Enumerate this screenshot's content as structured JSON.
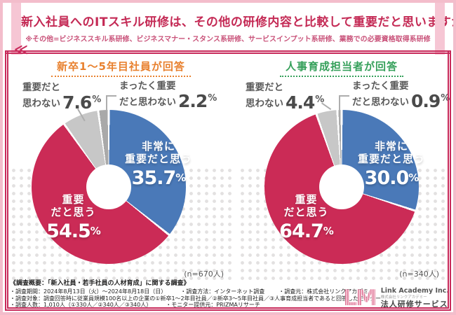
{
  "header": {
    "title": "新入社員へのITスキル研修は、その他の研修内容と比較して重要だと思いますか？",
    "note": "※その他=ビジネススキル系研修、ビジネスマナー・スタンス系研修、サービスインプット系研修、業務での必要資格取得系研修"
  },
  "colors": {
    "accent_crimson": "#c8295a",
    "frame_pink": "#f3bdcb",
    "blue": "#4a79b8",
    "red": "#cb2b56",
    "gray_light": "#c7c7c7",
    "gray_dark": "#a9a9a9",
    "orange": "#e8812f",
    "green": "#35a05a"
  },
  "chart_data": [
    {
      "type": "pie",
      "title": "新卒1～5年目社員が回答",
      "title_color": "#e8812f",
      "sample": "(n=670人)",
      "categories": [
        "非常に重要だと思う",
        "重要だと思う",
        "重要だと思わない",
        "まったく重要だと思わない"
      ],
      "values": [
        35.7,
        54.5,
        7.6,
        2.2
      ],
      "colors": [
        "#4a79b8",
        "#cb2b56",
        "#c7c7c7",
        "#a9a9a9"
      ],
      "display": {
        "very": {
          "line1": "非常に",
          "line2": "重要だと思う",
          "pct": "35.7",
          "unit": "%"
        },
        "imp": {
          "line1": "重要",
          "line2": "だと思う",
          "pct": "54.5",
          "unit": "%"
        },
        "not": {
          "line1": "重要だと",
          "line2": "思わない",
          "pct": "7.6",
          "unit": "%"
        },
        "notall": {
          "line1": "まったく重要",
          "line2": "だと思わない",
          "pct": "2.2",
          "unit": "%"
        }
      }
    },
    {
      "type": "pie",
      "title": "人事育成担当者が回答",
      "title_color": "#35a05a",
      "sample": "(n=340人)",
      "categories": [
        "非常に重要だと思う",
        "重要だと思う",
        "重要だと思わない",
        "まったく重要だと思わない"
      ],
      "values": [
        30.0,
        64.7,
        4.4,
        0.9
      ],
      "colors": [
        "#4a79b8",
        "#cb2b56",
        "#c7c7c7",
        "#a9a9a9"
      ],
      "display": {
        "very": {
          "line1": "非常に",
          "line2": "重要だと思う",
          "pct": "30.0",
          "unit": "%"
        },
        "imp": {
          "line1": "重要",
          "line2": "だと思う",
          "pct": "64.7",
          "unit": "%"
        },
        "not": {
          "line1": "重要だと",
          "line2": "思わない",
          "pct": "4.4",
          "unit": "%"
        },
        "notall": {
          "line1": "まったく重要",
          "line2": "だと思わない",
          "pct": "0.9",
          "unit": "%"
        }
      }
    }
  ],
  "decor": {
    "chevron": "≪"
  },
  "footer": {
    "heading": "《調査概要：「新入社員・若手社員の人材育成」に関する調査》",
    "period": "・調査期間：2024年8月13日（火）～2024年8月18日（日）",
    "method": "・調査方法：インターネット調査",
    "source": "・調査元：株式会社リンクアカデミー",
    "target": "・調査対象：調査回答時に従業員規模100名以上の企業の①新卒1～2年目社員／②新卒3～5年目社員／③人事育成担当者であると回答したモニター",
    "count": "・調査人数：1,010人（①330人／②340人／③340人）",
    "monitor": "・モニター提供元：PRIZMAリサーチ"
  },
  "logo": {
    "mark": "LM",
    "company_en": "Link Academy Inc.",
    "company_jp": "株式会社リンクアカデミー",
    "service": "法人研修サービス"
  }
}
